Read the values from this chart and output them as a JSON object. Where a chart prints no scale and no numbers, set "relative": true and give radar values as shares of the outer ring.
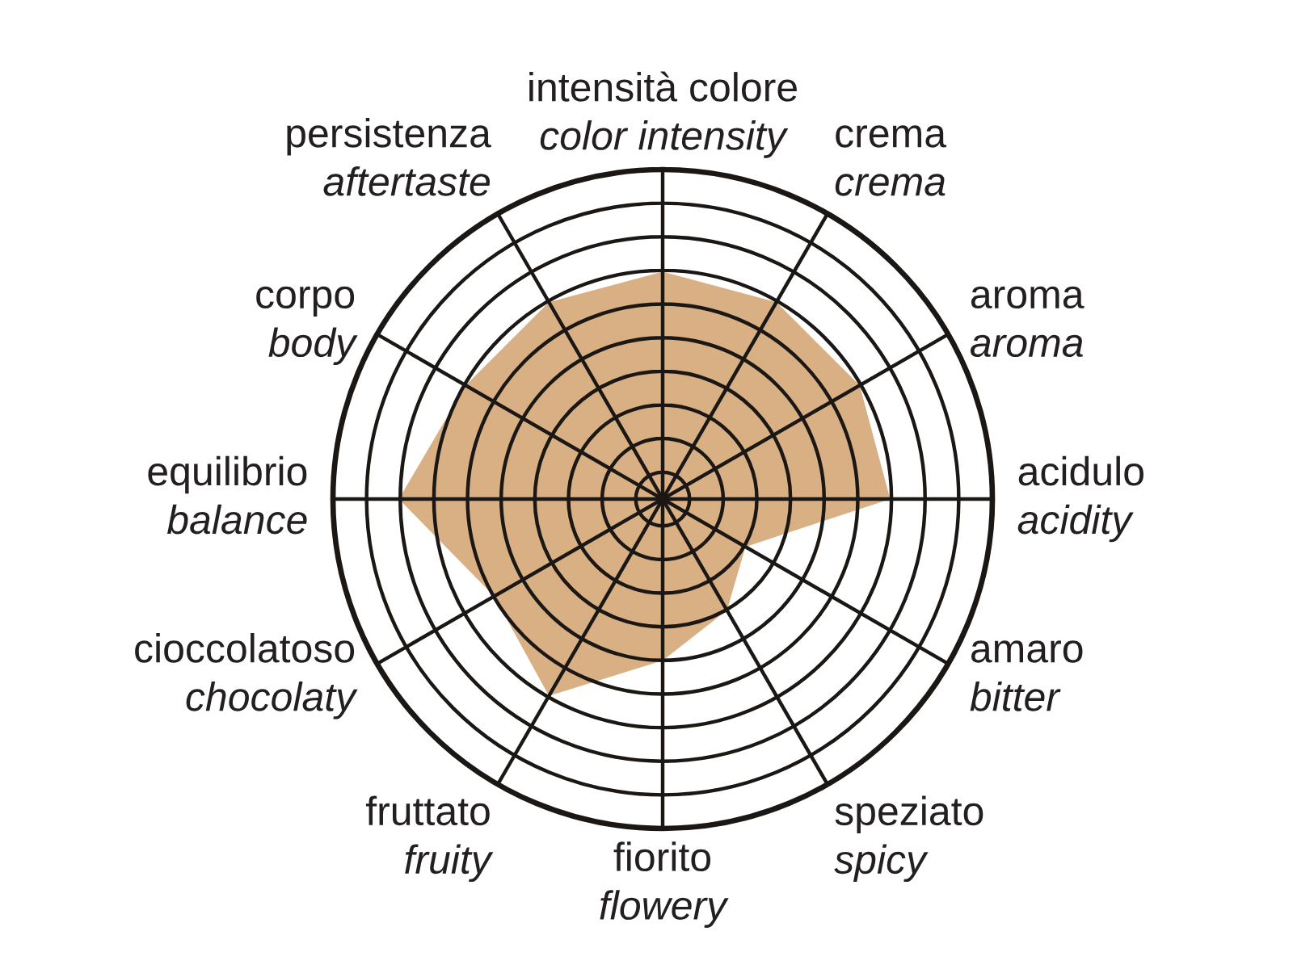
{
  "chart_data": {
    "type": "radar",
    "relative": true,
    "categories": [
      "intensità colore\ncolor intensity",
      "crema\ncrema",
      "aroma\naroma",
      "acidulo\nacidity",
      "amaro\nbitter",
      "speziato\nspicy",
      "fiorito\nflowery",
      "fruttato\nfruity",
      "cioccolatoso\nchocolaty",
      "equilibrio\nbalance",
      "corpo\nbody",
      "persistenza\naftertaste"
    ],
    "series": [
      {
        "color": "#d9af84",
        "values": [
          0.69,
          0.69,
          0.69,
          0.69,
          0.29,
          0.39,
          0.49,
          0.69,
          0.59,
          0.8,
          0.69,
          0.69
        ]
      }
    ],
    "grid": true
  }
}
